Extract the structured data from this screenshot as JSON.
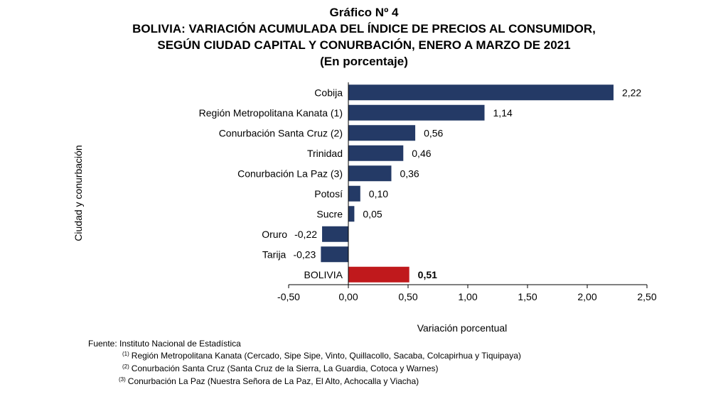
{
  "title": {
    "line1": "Gráfico Nº 4",
    "line2": "BOLIVIA: VARIACIÓN ACUMULADA DEL ÍNDICE DE PRECIOS AL CONSUMIDOR,",
    "line3": "SEGÚN CIUDAD CAPITAL Y CONURBACIÓN, ENERO A MARZO DE 2021",
    "line4": "(En porcentaje)"
  },
  "chart_data": {
    "type": "bar",
    "orientation": "horizontal",
    "categories": [
      "Cobija",
      "Región Metropolitana Kanata (1)",
      "Conurbación Santa Cruz (2)",
      "Trinidad",
      "Conurbación La Paz (3)",
      "Potosí",
      "Sucre",
      "Oruro",
      "Tarija",
      "BOLIVIA"
    ],
    "values": [
      2.22,
      1.14,
      0.56,
      0.46,
      0.36,
      0.1,
      0.05,
      -0.22,
      -0.23,
      0.51
    ],
    "value_labels": [
      "2,22",
      "1,14",
      "0,56",
      "0,46",
      "0,36",
      "0,10",
      "0,05",
      "-0,22",
      "-0,23",
      "0,51"
    ],
    "xlabel": "Variación porcentual",
    "ylabel": "Ciudad y conurbación",
    "xlim": [
      -0.5,
      2.5
    ],
    "xticks": [
      -0.5,
      0,
      0.5,
      1.0,
      1.5,
      2.0,
      2.5
    ],
    "xtick_labels": [
      "-0,50",
      "0,00",
      "0,50",
      "1,00",
      "1,50",
      "2,00",
      "2,50"
    ],
    "grid": false,
    "colors": {
      "default": "#243a66",
      "highlight": "#c0191c"
    },
    "highlight_category": "BOLIVIA"
  },
  "footer": {
    "source": "Fuente: Instituto Nacional de Estadística",
    "notes": [
      {
        "mark": "(1)",
        "text": "Región Metropolitana Kanata (Cercado, Sipe Sipe, Vinto, Quillacollo, Sacaba, Colcapirhua y Tiquipaya)"
      },
      {
        "mark": "(2)",
        "text": "Conurbación Santa Cruz (Santa Cruz de la Sierra, La Guardia, Cotoca y Warnes)"
      },
      {
        "mark": "(3)",
        "text": "Conurbación La Paz (Nuestra Señora de La Paz, El Alto, Achocalla y Viacha)"
      }
    ]
  }
}
